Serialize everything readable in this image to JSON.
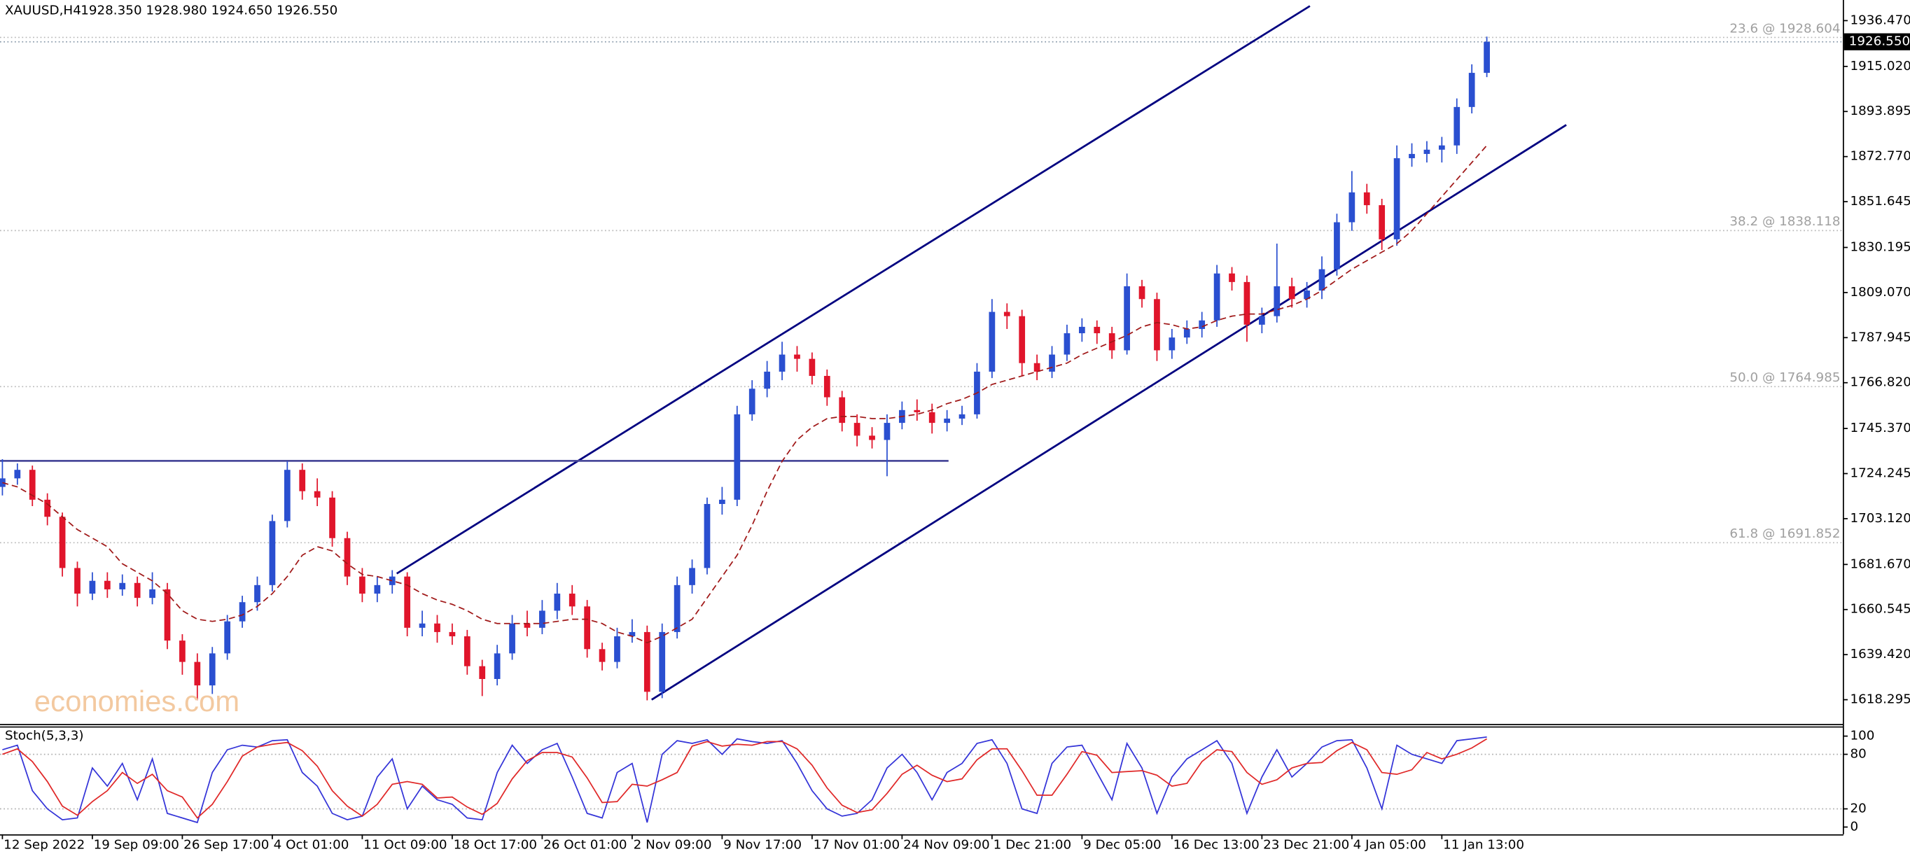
{
  "chart_data": {
    "type": "candlestick",
    "title": "XAUUSD,H4",
    "subtitle": "1928.350 1928.980 1924.650 1926.550",
    "watermark": "economies.com",
    "up_color": "#2a4fd0",
    "down_color": "#e0152b",
    "open": [
      1718,
      1722,
      1726,
      1712,
      1704,
      1680,
      1668,
      1674,
      1670,
      1673,
      1666,
      1670,
      1646,
      1636,
      1625,
      1640,
      1655,
      1664,
      1672,
      1702,
      1726,
      1716,
      1713,
      1694,
      1676,
      1668,
      1672,
      1676,
      1652,
      1654,
      1650,
      1648,
      1634,
      1628,
      1640,
      1654,
      1652,
      1660,
      1668,
      1662,
      1642,
      1636,
      1648,
      1650,
      1622,
      1650,
      1672,
      1680,
      1710,
      1712,
      1752,
      1764,
      1772,
      1780,
      1778,
      1770,
      1760,
      1748,
      1742,
      1740,
      1748,
      1754,
      1753,
      1748,
      1750,
      1752,
      1772,
      1800,
      1798,
      1776,
      1772,
      1780,
      1790,
      1793,
      1790,
      1782,
      1812,
      1806,
      1782,
      1788,
      1792,
      1796,
      1818,
      1814,
      1794,
      1798,
      1812,
      1806,
      1810,
      1820,
      1842,
      1856,
      1850,
      1834,
      1872,
      1874,
      1876,
      1878,
      1896,
      1912
    ],
    "high": [
      1731,
      1729,
      1728,
      1715,
      1706,
      1683,
      1678,
      1678,
      1677,
      1676,
      1678,
      1673,
      1649,
      1640,
      1643,
      1658,
      1667,
      1676,
      1705,
      1730,
      1729,
      1722,
      1716,
      1697,
      1680,
      1676,
      1679,
      1678,
      1660,
      1658,
      1654,
      1651,
      1637,
      1644,
      1658,
      1660,
      1665,
      1673,
      1672,
      1665,
      1645,
      1652,
      1656,
      1653,
      1654,
      1676,
      1684,
      1713,
      1718,
      1756,
      1768,
      1777,
      1786,
      1784,
      1781,
      1773,
      1763,
      1752,
      1746,
      1752,
      1758,
      1759,
      1757,
      1754,
      1756,
      1776,
      1806,
      1804,
      1801,
      1780,
      1784,
      1794,
      1797,
      1796,
      1793,
      1818,
      1815,
      1809,
      1792,
      1796,
      1800,
      1822,
      1821,
      1817,
      1802,
      1832,
      1816,
      1814,
      1826,
      1846,
      1866,
      1860,
      1853,
      1878,
      1879,
      1880,
      1882,
      1900,
      1916,
      1928.98
    ],
    "low": [
      1714,
      1719,
      1709,
      1700,
      1676,
      1662,
      1665,
      1666,
      1667,
      1662,
      1663,
      1642,
      1630,
      1618,
      1621,
      1637,
      1652,
      1660,
      1669,
      1699,
      1712,
      1709,
      1690,
      1672,
      1664,
      1664,
      1668,
      1648,
      1648,
      1645,
      1644,
      1630,
      1620,
      1625,
      1637,
      1648,
      1649,
      1656,
      1658,
      1638,
      1632,
      1633,
      1645,
      1618,
      1619,
      1647,
      1668,
      1677,
      1705,
      1709,
      1749,
      1760,
      1768,
      1772,
      1766,
      1756,
      1744,
      1737,
      1736,
      1723,
      1745,
      1749,
      1743,
      1744,
      1747,
      1750,
      1769,
      1792,
      1770,
      1768,
      1769,
      1777,
      1786,
      1785,
      1778,
      1780,
      1802,
      1777,
      1778,
      1785,
      1788,
      1793,
      1810,
      1786,
      1790,
      1795,
      1802,
      1802,
      1806,
      1817,
      1838,
      1846,
      1829,
      1831,
      1868,
      1870,
      1870,
      1874,
      1893,
      1910
    ],
    "close": [
      1722,
      1726,
      1712,
      1704,
      1680,
      1668,
      1674,
      1670,
      1673,
      1666,
      1670,
      1646,
      1636,
      1625,
      1640,
      1655,
      1664,
      1672,
      1702,
      1726,
      1716,
      1713,
      1694,
      1676,
      1668,
      1672,
      1676,
      1652,
      1654,
      1650,
      1648,
      1634,
      1628,
      1640,
      1654,
      1652,
      1660,
      1668,
      1662,
      1642,
      1636,
      1648,
      1650,
      1622,
      1650,
      1672,
      1680,
      1710,
      1712,
      1752,
      1764,
      1772,
      1780,
      1778,
      1770,
      1760,
      1748,
      1742,
      1740,
      1748,
      1754,
      1753,
      1748,
      1750,
      1752,
      1772,
      1800,
      1798,
      1776,
      1772,
      1780,
      1790,
      1793,
      1790,
      1782,
      1812,
      1806,
      1782,
      1788,
      1792,
      1796,
      1818,
      1814,
      1794,
      1798,
      1812,
      1806,
      1810,
      1820,
      1842,
      1856,
      1850,
      1834,
      1872,
      1874,
      1876,
      1878,
      1896,
      1912,
      1926.55
    ],
    "ma": {
      "color": "#a01818",
      "values": [
        1720,
        1718,
        1714,
        1710,
        1704,
        1698,
        1694,
        1690,
        1682,
        1678,
        1674,
        1668,
        1660,
        1656,
        1655,
        1656,
        1658,
        1662,
        1668,
        1676,
        1686,
        1690,
        1688,
        1682,
        1677,
        1676,
        1674,
        1672,
        1668,
        1665,
        1663,
        1660,
        1656,
        1654,
        1654,
        1654,
        1654,
        1655,
        1656,
        1656,
        1654,
        1650,
        1648,
        1645,
        1648,
        1652,
        1656,
        1666,
        1676,
        1686,
        1700,
        1716,
        1730,
        1740,
        1746,
        1750,
        1751,
        1751,
        1750,
        1750,
        1751,
        1752,
        1754,
        1757,
        1759,
        1762,
        1766,
        1768,
        1770,
        1772,
        1774,
        1776,
        1780,
        1783,
        1786,
        1789,
        1793,
        1795,
        1794,
        1792,
        1793,
        1796,
        1798,
        1799,
        1799,
        1801,
        1803,
        1806,
        1810,
        1815,
        1820,
        1824,
        1828,
        1832,
        1838,
        1846,
        1854,
        1862,
        1870,
        1878
      ]
    },
    "xlim": [
      -0.16,
      122.74
    ],
    "xticks": [
      {
        "value": 0,
        "label": "12 Sep 2022"
      },
      {
        "value": 6,
        "label": "19 Sep 09:00"
      },
      {
        "value": 12,
        "label": "26 Sep 17:00"
      },
      {
        "value": 18,
        "label": "4 Oct 01:00"
      },
      {
        "value": 24,
        "label": "11 Oct 09:00"
      },
      {
        "value": 30,
        "label": "18 Oct 17:00"
      },
      {
        "value": 36,
        "label": "26 Oct 01:00"
      },
      {
        "value": 42,
        "label": "2 Nov 09:00"
      },
      {
        "value": 48,
        "label": "9 Nov 17:00"
      },
      {
        "value": 54,
        "label": "17 Nov 01:00"
      },
      {
        "value": 60,
        "label": "24 Nov 09:00"
      },
      {
        "value": 66,
        "label": "1 Dec 21:00"
      },
      {
        "value": 72,
        "label": "9 Dec 05:00"
      },
      {
        "value": 78,
        "label": "16 Dec 13:00"
      },
      {
        "value": 84,
        "label": "23 Dec 21:00"
      },
      {
        "value": 90,
        "label": "4 Jan 05:00"
      },
      {
        "value": 96,
        "label": "11 Jan 13:00"
      }
    ],
    "ylim": [
      1606.93,
      1946.13
    ],
    "yticks": [
      {
        "value": 1936.47,
        "label": "1936.470"
      },
      {
        "value": 1915.02,
        "label": "1915.020"
      },
      1893.895,
      {
        "value": 1872.77,
        "label": "1872.770"
      },
      1851.645,
      1830.195,
      {
        "value": 1809.07,
        "label": "1809.070"
      },
      1787.945,
      {
        "value": 1766.82,
        "label": "1766.820"
      },
      {
        "value": 1745.37,
        "label": "1745.370"
      },
      1724.245,
      {
        "value": 1703.12,
        "label": "1703.120"
      },
      {
        "value": 1681.67,
        "label": "1681.670"
      },
      1660.545,
      {
        "value": 1639.42,
        "label": "1639.420"
      },
      1618.295
    ],
    "last_price": {
      "value": 1926.55,
      "label": "1926.550"
    },
    "fib_levels": [
      {
        "value": 1928.604,
        "label": "23.6 @ 1928.604"
      },
      {
        "value": 1838.118,
        "label": "38.2 @ 1838.118"
      },
      {
        "value": 1764.985,
        "label": "50.0 @ 1764.985"
      },
      {
        "value": 1691.852,
        "label": "61.8 @ 1691.852"
      }
    ],
    "trendlines": [
      {
        "x": [
          26.3,
          87.2
        ],
        "y": [
          1677.4,
          1943.3
        ],
        "color": "#000080"
      },
      {
        "x": [
          43.3,
          104.3
        ],
        "y": [
          1618.3,
          1887.6
        ],
        "color": "#000080"
      },
      {
        "x": [
          -0.16,
          63.1
        ],
        "y": [
          1730.2,
          1730.2
        ],
        "color": "#4a4a9a"
      }
    ],
    "stochastic": {
      "label": "Stoch(5,3,3)",
      "ylim": [
        -8,
        110.7
      ],
      "yticks": [
        0,
        20,
        80,
        100
      ],
      "levels": [
        20,
        80
      ],
      "series": [
        {
          "color": "#3434d8",
          "values": [
            85,
            90,
            40,
            20,
            8,
            10,
            65,
            45,
            70,
            30,
            75,
            15,
            10,
            5,
            60,
            85,
            90,
            88,
            95,
            96,
            60,
            45,
            15,
            8,
            12,
            55,
            75,
            20,
            45,
            30,
            25,
            10,
            8,
            60,
            90,
            70,
            85,
            92,
            55,
            15,
            10,
            60,
            70,
            5,
            80,
            95,
            92,
            96,
            80,
            97,
            94,
            92,
            95,
            70,
            40,
            20,
            12,
            15,
            30,
            65,
            80,
            60,
            30,
            60,
            70,
            92,
            96,
            70,
            20,
            15,
            70,
            88,
            90,
            60,
            30,
            92,
            65,
            15,
            55,
            75,
            85,
            95,
            70,
            15,
            55,
            85,
            55,
            70,
            88,
            95,
            96,
            65,
            20,
            90,
            80,
            75,
            70,
            95,
            97,
            99
          ]
        },
        {
          "color": "#e02828",
          "values": [
            80,
            86,
            72,
            50,
            23,
            13,
            28,
            40,
            60,
            48,
            58,
            40,
            33,
            10,
            25,
            50,
            78,
            88,
            91,
            93,
            84,
            67,
            40,
            23,
            12,
            25,
            47,
            50,
            47,
            32,
            33,
            22,
            14,
            26,
            53,
            73,
            82,
            82,
            77,
            54,
            27,
            28,
            47,
            45,
            52,
            60,
            89,
            94,
            89,
            91,
            90,
            94,
            94,
            86,
            68,
            43,
            24,
            16,
            19,
            37,
            58,
            68,
            57,
            50,
            53,
            74,
            86,
            86,
            62,
            35,
            35,
            58,
            83,
            79,
            60,
            61,
            62,
            57,
            45,
            48,
            72,
            85,
            83,
            60,
            47,
            52,
            65,
            70,
            71,
            84,
            93,
            85,
            60,
            58,
            63,
            82,
            75,
            80,
            87,
            97
          ]
        }
      ]
    }
  }
}
